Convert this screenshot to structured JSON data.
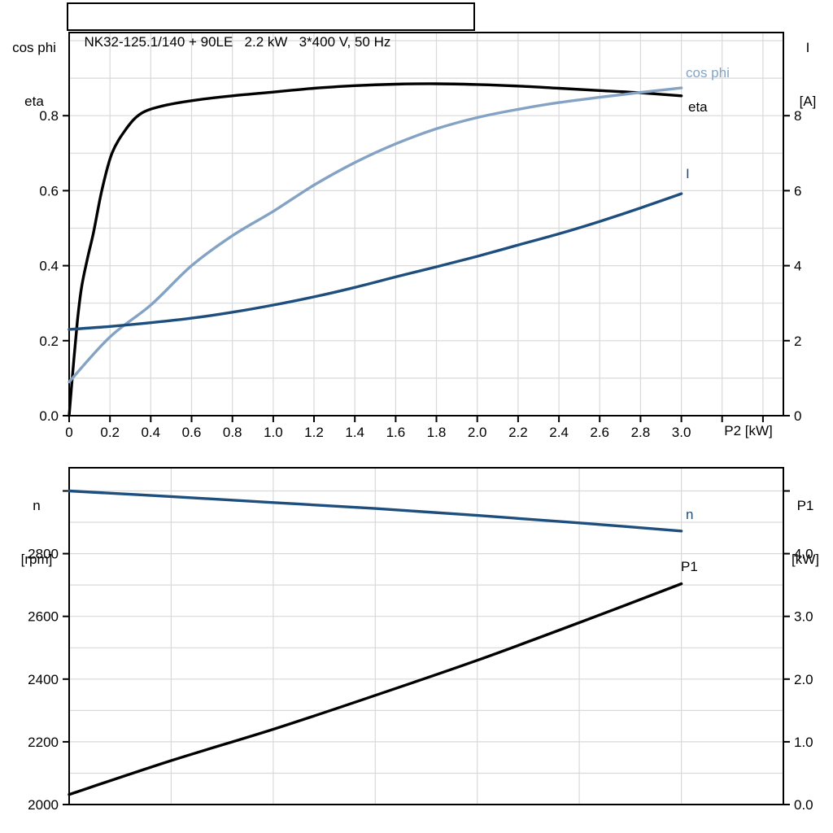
{
  "title": "NK32-125.1/140 + 90LE   2.2 kW   3*400 V, 50 Hz",
  "colors": {
    "black": "#000000",
    "dark_blue": "#1d4e7d",
    "light_blue": "#84a3c4",
    "grid": "#d9d9d9",
    "background": "#ffffff"
  },
  "chart_data": [
    {
      "id": "top-chart",
      "type": "line",
      "x_axis": {
        "label": "P2 [kW]",
        "min": 0,
        "max": 3.5,
        "tick_values": [
          0,
          0.2,
          0.4,
          0.6,
          0.8,
          1.0,
          1.2,
          1.4,
          1.6,
          1.8,
          2.0,
          2.2,
          2.4,
          2.6,
          2.8,
          3.0,
          3.2,
          3.4
        ],
        "tick_labels": [
          "0",
          "0.2",
          "0.4",
          "0.6",
          "0.8",
          "1.0",
          "1.2",
          "1.4",
          "1.6",
          "1.8",
          "2.0",
          "2.2",
          "2.4",
          "2.6",
          "2.8",
          "3.0",
          "",
          ""
        ],
        "grid_step": 0.2
      },
      "y_left": {
        "label_lines": [
          "cos phi",
          "eta"
        ],
        "min": 0,
        "max": 1.02,
        "tick_values": [
          0,
          0.2,
          0.4,
          0.6,
          0.8
        ],
        "tick_labels": [
          "0.0",
          "0.2",
          "0.4",
          "0.6",
          "0.8"
        ],
        "grid_step": 0.1
      },
      "y_right": {
        "label_lines": [
          "I",
          "[A]"
        ],
        "min": 0,
        "max": 10.2,
        "tick_values": [
          0,
          2,
          4,
          6,
          8
        ],
        "tick_labels": [
          "0",
          "2",
          "4",
          "6",
          "8"
        ]
      },
      "series": [
        {
          "name": "eta",
          "label": "eta",
          "axis": "left",
          "color": "#000000",
          "x": [
            0,
            0.02,
            0.04,
            0.06,
            0.09,
            0.12,
            0.16,
            0.21,
            0.28,
            0.35,
            0.45,
            0.6,
            0.8,
            1.0,
            1.2,
            1.4,
            1.6,
            1.8,
            2.0,
            2.2,
            2.4,
            2.6,
            2.8,
            3.0
          ],
          "y": [
            0,
            0.13,
            0.25,
            0.34,
            0.42,
            0.49,
            0.6,
            0.7,
            0.765,
            0.805,
            0.825,
            0.84,
            0.853,
            0.863,
            0.873,
            0.88,
            0.884,
            0.885,
            0.883,
            0.879,
            0.873,
            0.867,
            0.861,
            0.853
          ]
        },
        {
          "name": "cos phi",
          "label": "cos phi",
          "axis": "left",
          "color": "#84a3c4",
          "x": [
            0,
            0.2,
            0.4,
            0.6,
            0.8,
            1.0,
            1.2,
            1.4,
            1.6,
            1.8,
            2.0,
            2.2,
            2.4,
            2.6,
            2.8,
            3.0
          ],
          "y": [
            0.09,
            0.21,
            0.295,
            0.4,
            0.48,
            0.545,
            0.615,
            0.675,
            0.725,
            0.765,
            0.795,
            0.817,
            0.835,
            0.849,
            0.862,
            0.874
          ]
        },
        {
          "name": "I",
          "label": "I",
          "axis": "right",
          "color": "#1d4e7d",
          "x": [
            0,
            0.2,
            0.4,
            0.6,
            0.8,
            1.0,
            1.2,
            1.4,
            1.6,
            1.8,
            2.0,
            2.2,
            2.4,
            2.6,
            2.8,
            3.0
          ],
          "y": [
            2.3,
            2.38,
            2.48,
            2.6,
            2.76,
            2.95,
            3.17,
            3.42,
            3.7,
            3.97,
            4.25,
            4.55,
            4.85,
            5.18,
            5.54,
            5.92
          ]
        }
      ]
    },
    {
      "id": "bottom-chart",
      "type": "line",
      "x_axis": {
        "label": "",
        "min": 0,
        "max": 3.5,
        "tick_values": [],
        "tick_labels": [],
        "grid_step": 0.5
      },
      "y_left": {
        "label_lines": [
          "n",
          "[rpm]"
        ],
        "min": 2000,
        "max": 3075,
        "tick_values": [
          2000,
          2200,
          2400,
          2600,
          2800,
          3000
        ],
        "tick_labels": [
          "2000",
          "2200",
          "2400",
          "2600",
          "2800",
          ""
        ],
        "grid_step": 100
      },
      "y_right": {
        "label_lines": [
          "P1",
          "[kW]"
        ],
        "min": 0,
        "max": 5.37,
        "tick_values": [
          0,
          1,
          2,
          3,
          4,
          5
        ],
        "tick_labels": [
          "0.0",
          "1.0",
          "2.0",
          "3.0",
          "4.0",
          ""
        ]
      },
      "series": [
        {
          "name": "n",
          "label": "n",
          "axis": "left",
          "color": "#1d4e7d",
          "x": [
            0,
            0.5,
            1.0,
            1.5,
            2.0,
            2.5,
            3.0
          ],
          "y": [
            3000,
            2982,
            2963,
            2944,
            2922,
            2898,
            2872
          ]
        },
        {
          "name": "P1",
          "label": "P1",
          "axis": "right",
          "color": "#000000",
          "x": [
            0,
            0.5,
            1.0,
            1.5,
            2.0,
            2.5,
            3.0
          ],
          "y": [
            0.16,
            0.7,
            1.2,
            1.74,
            2.3,
            2.9,
            3.52
          ]
        }
      ]
    }
  ]
}
